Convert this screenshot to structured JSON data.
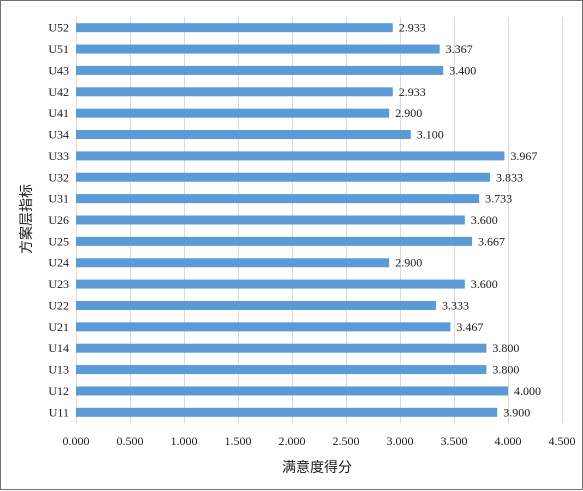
{
  "chart_data": {
    "type": "bar",
    "orientation": "horizontal",
    "categories": [
      "U52",
      "U51",
      "U43",
      "U42",
      "U41",
      "U34",
      "U33",
      "U32",
      "U31",
      "U26",
      "U25",
      "U24",
      "U23",
      "U22",
      "U21",
      "U14",
      "U13",
      "U12",
      "U11"
    ],
    "values": [
      2.933,
      3.367,
      3.4,
      2.933,
      2.9,
      3.1,
      3.967,
      3.833,
      3.733,
      3.6,
      3.667,
      2.9,
      3.6,
      3.333,
      3.467,
      3.8,
      3.8,
      4.0,
      3.9
    ],
    "data_labels": [
      "2.933",
      "3.367",
      "3.400",
      "2.933",
      "2.900",
      "3.100",
      "3.967",
      "3.833",
      "3.733",
      "3.600",
      "3.667",
      "2.900",
      "3.600",
      "3.333",
      "3.467",
      "3.800",
      "3.800",
      "4.000",
      "3.900"
    ],
    "xlabel": "满意度得分",
    "ylabel": "方案层指标",
    "xlim": [
      0,
      4.5
    ],
    "x_ticks": [
      0,
      0.5,
      1.0,
      1.5,
      2.0,
      2.5,
      3.0,
      3.5,
      4.0,
      4.5
    ],
    "x_tick_labels": [
      "0.000",
      "0.500",
      "1.000",
      "1.500",
      "2.000",
      "2.500",
      "3.000",
      "3.500",
      "4.000",
      "4.500"
    ],
    "grid": "vertical",
    "bar_color": "#5b9bd5",
    "legend": "none"
  }
}
